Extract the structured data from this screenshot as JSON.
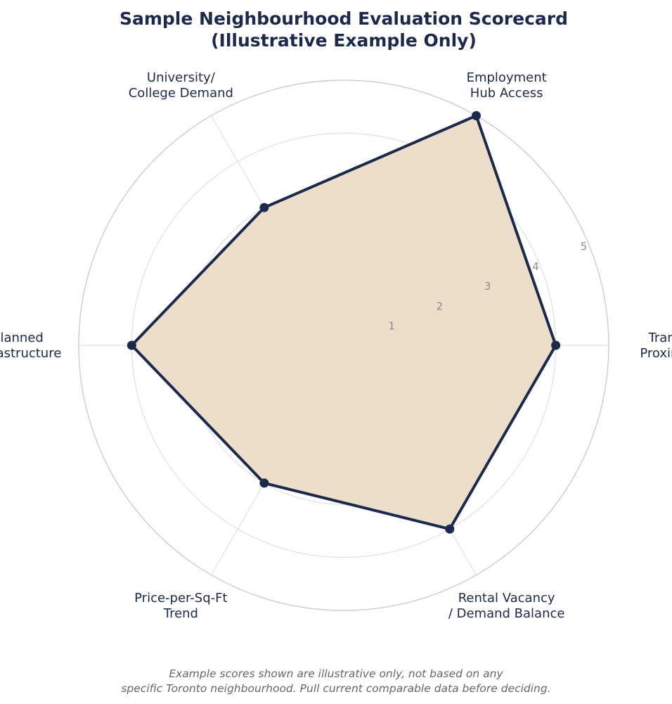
{
  "chart_data": {
    "type": "radar",
    "title_lines": [
      "Sample Neighbourhood Evaluation Scorecard",
      "(Illustrative Example Only)"
    ],
    "categories": [
      [
        "Transit",
        "Proximity"
      ],
      [
        "Employment",
        "Hub Access"
      ],
      [
        "University/",
        "College Demand"
      ],
      [
        "Planned",
        "Infrastructure"
      ],
      [
        "Price-per-Sq-Ft",
        "Trend"
      ],
      [
        "Rental Vacancy",
        "/ Demand Balance"
      ]
    ],
    "series": [
      {
        "values": [
          4,
          5,
          3,
          4,
          3,
          4
        ]
      }
    ],
    "r_range": [
      0,
      5
    ],
    "r_ticks": [
      "1",
      "2",
      "3",
      "4",
      "5"
    ],
    "grid": true,
    "footnote_lines": [
      "Example scores shown are illustrative only, not based on any",
      "specific Toronto neighbourhood. Pull current comparable data before deciding."
    ],
    "colors": {
      "line": "#1b2a4a",
      "fill": "#ecdcc8",
      "grid": "#e0e0e0",
      "outer_ring": "#cccccc",
      "text": "#1b2a4a",
      "tick": "#8a8a8a",
      "footnote": "#666666"
    }
  }
}
